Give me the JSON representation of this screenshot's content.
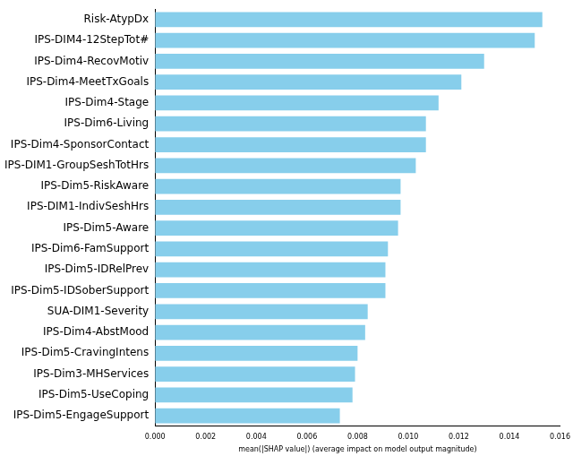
{
  "chart_data": {
    "type": "bar",
    "orientation": "horizontal",
    "x_label": "mean(|SHAP value|) (average impact on model output magnitude)",
    "categories": [
      "Risk-AtypDx",
      "IPS-DIM4-12StepTot#",
      "IPS-Dim4-RecovMotiv",
      "IPS-Dim4-MeetTxGoals",
      "IPS-Dim4-Stage",
      "IPS-Dim6-Living",
      "IPS-Dim4-SponsorContact",
      "IPS-DIM1-GroupSeshTotHrs",
      "IPS-Dim5-RiskAware",
      "IPS-DIM1-IndivSeshHrs",
      "IPS-Dim5-Aware",
      "IPS-Dim6-FamSupport",
      "IPS-Dim5-IDRelPrev",
      "IPS-Dim5-IDSoberSupport",
      "SUA-DIM1-Severity",
      "IPS-Dim4-AbstMood",
      "IPS-Dim5-CravingIntens",
      "IPS-Dim3-MHServices",
      "IPS-Dim5-UseCoping",
      "IPS-Dim5-EngageSupport"
    ],
    "values": [
      0.0153,
      0.015,
      0.013,
      0.0121,
      0.0112,
      0.0107,
      0.0107,
      0.0103,
      0.0097,
      0.0097,
      0.0096,
      0.0092,
      0.0091,
      0.0091,
      0.0084,
      0.0083,
      0.008,
      0.0079,
      0.0078,
      0.0073
    ],
    "color": "#87ceeb",
    "xlim": [
      0,
      0.016
    ],
    "xticks": [
      {
        "value": 0,
        "label": "0.000"
      },
      {
        "value": 0.002,
        "label": "0.002"
      },
      {
        "value": 0.004,
        "label": "0.004"
      },
      {
        "value": 0.006,
        "label": "0.006"
      },
      {
        "value": 0.008,
        "label": "0.008"
      },
      {
        "value": 0.01,
        "label": "0.010"
      },
      {
        "value": 0.012,
        "label": "0.012"
      },
      {
        "value": 0.014,
        "label": "0.014"
      },
      {
        "value": 0.016,
        "label": "0.016"
      }
    ],
    "grid": false
  }
}
